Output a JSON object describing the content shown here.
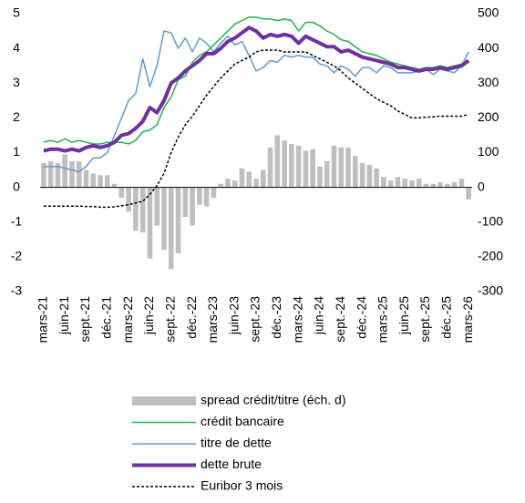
{
  "chart_data": {
    "type": "bar",
    "categories": [
      "mars-21",
      null,
      null,
      "juin-21",
      null,
      null,
      "sept.-21",
      null,
      null,
      "déc.-21",
      null,
      null,
      "mars-22",
      null,
      null,
      "juin-22",
      null,
      null,
      "sept.-22",
      null,
      null,
      "déc.-22",
      null,
      null,
      "mars-23",
      null,
      null,
      "juin-23",
      null,
      null,
      "sept.-23",
      null,
      null,
      "déc.-23",
      null,
      null,
      "mars-24",
      null,
      null,
      "juin-24",
      null,
      null,
      "sept.-24",
      null,
      null,
      "déc.-24",
      null,
      null,
      "mars-25",
      null,
      null,
      "juin-25",
      null,
      null,
      "sept.-25",
      null,
      null,
      "déc.-25",
      null,
      null,
      "mars-26"
    ],
    "series": [
      {
        "name": "spread crédit/titre (éch. d)",
        "type": "bar",
        "axis": "y2",
        "color": "#bfbfbf",
        "values": [
          70,
          75,
          70,
          95,
          75,
          75,
          50,
          40,
          35,
          35,
          10,
          -30,
          -70,
          -125,
          -130,
          -205,
          -110,
          -180,
          -235,
          -190,
          -85,
          -110,
          -50,
          -55,
          -30,
          10,
          25,
          20,
          55,
          45,
          25,
          50,
          115,
          150,
          135,
          125,
          120,
          105,
          110,
          60,
          75,
          120,
          115,
          115,
          90,
          70,
          65,
          55,
          30,
          20,
          30,
          25,
          20,
          25,
          10,
          10,
          15,
          10,
          15,
          25,
          -35
        ]
      },
      {
        "name": "crédit bancaire",
        "type": "line",
        "color": "#22b24c",
        "width": 1.5,
        "values": [
          1.3,
          1.35,
          1.3,
          1.4,
          1.3,
          1.35,
          1.3,
          1.25,
          1.25,
          1.3,
          1.3,
          1.3,
          1.25,
          1.35,
          1.6,
          1.65,
          1.8,
          2.3,
          2.6,
          3.1,
          3.2,
          3.6,
          3.8,
          3.9,
          4.1,
          4.3,
          4.5,
          4.7,
          4.8,
          4.9,
          4.9,
          4.85,
          4.85,
          4.8,
          4.85,
          4.8,
          4.5,
          4.75,
          4.75,
          4.65,
          4.5,
          4.4,
          4.25,
          4.2,
          4.05,
          3.9,
          3.85,
          3.8,
          3.7,
          3.6,
          3.55,
          3.5,
          3.45,
          3.4,
          3.45,
          3.45,
          3.5,
          3.45,
          3.5,
          3.55,
          3.65
        ]
      },
      {
        "name": "titre de dette",
        "type": "line",
        "color": "#5b9bd5",
        "width": 1.5,
        "values": [
          0.6,
          0.6,
          0.6,
          0.55,
          0.5,
          0.45,
          0.6,
          0.85,
          0.85,
          1.0,
          1.5,
          2.0,
          2.5,
          2.7,
          3.7,
          2.9,
          3.5,
          4.5,
          4.45,
          4.0,
          4.3,
          3.9,
          4.3,
          4.15,
          3.9,
          4.15,
          4.35,
          4.1,
          4.2,
          3.8,
          3.35,
          3.45,
          3.65,
          3.6,
          3.8,
          3.75,
          3.8,
          3.75,
          3.75,
          3.55,
          3.5,
          3.3,
          3.5,
          3.4,
          3.2,
          3.45,
          3.45,
          3.3,
          3.5,
          3.45,
          3.3,
          3.3,
          3.3,
          3.35,
          3.4,
          3.25,
          3.4,
          3.35,
          3.3,
          3.5,
          3.9
        ]
      },
      {
        "name": "dette brute",
        "type": "line",
        "color": "#7030a0",
        "width": 4,
        "values": [
          1.05,
          1.1,
          1.1,
          1.05,
          1.1,
          1.05,
          1.15,
          1.2,
          1.15,
          1.2,
          1.3,
          1.5,
          1.55,
          1.7,
          1.9,
          2.3,
          2.15,
          2.5,
          3.0,
          3.15,
          3.35,
          3.5,
          3.65,
          3.85,
          3.85,
          4.0,
          4.2,
          4.3,
          4.45,
          4.6,
          4.5,
          4.3,
          4.4,
          4.35,
          4.4,
          4.35,
          4.15,
          4.35,
          4.25,
          4.15,
          4.05,
          4.05,
          3.9,
          3.95,
          3.85,
          3.75,
          3.7,
          3.65,
          3.6,
          3.55,
          3.45,
          3.45,
          3.4,
          3.35,
          3.4,
          3.4,
          3.45,
          3.4,
          3.45,
          3.5,
          3.65
        ]
      },
      {
        "name": "Euribor 3 mois",
        "type": "line",
        "color": "#000000",
        "width": 1.5,
        "dash": true,
        "values": [
          -0.54,
          -0.54,
          -0.54,
          -0.54,
          -0.54,
          -0.54,
          -0.55,
          -0.55,
          -0.57,
          -0.57,
          -0.56,
          -0.53,
          -0.5,
          -0.45,
          -0.4,
          -0.2,
          0.05,
          0.4,
          1.0,
          1.45,
          1.8,
          2.05,
          2.35,
          2.65,
          2.9,
          3.15,
          3.35,
          3.55,
          3.65,
          3.75,
          3.9,
          3.95,
          3.95,
          3.95,
          3.9,
          3.9,
          3.9,
          3.9,
          3.8,
          3.7,
          3.6,
          3.5,
          3.35,
          3.15,
          3.0,
          2.85,
          2.7,
          2.55,
          2.45,
          2.35,
          2.2,
          2.1,
          2.0,
          2.0,
          2.02,
          2.03,
          2.05,
          2.05,
          2.05,
          2.05,
          2.1
        ]
      }
    ],
    "ylim": [
      -3,
      5
    ],
    "yticks": [
      -3,
      -2,
      -1,
      0,
      1,
      2,
      3,
      4,
      5
    ],
    "y2lim": [
      -300,
      500
    ],
    "y2ticks": [
      -300,
      -200,
      -100,
      0,
      100,
      200,
      300,
      400,
      500
    ],
    "grid": false,
    "legend": "bottom"
  }
}
